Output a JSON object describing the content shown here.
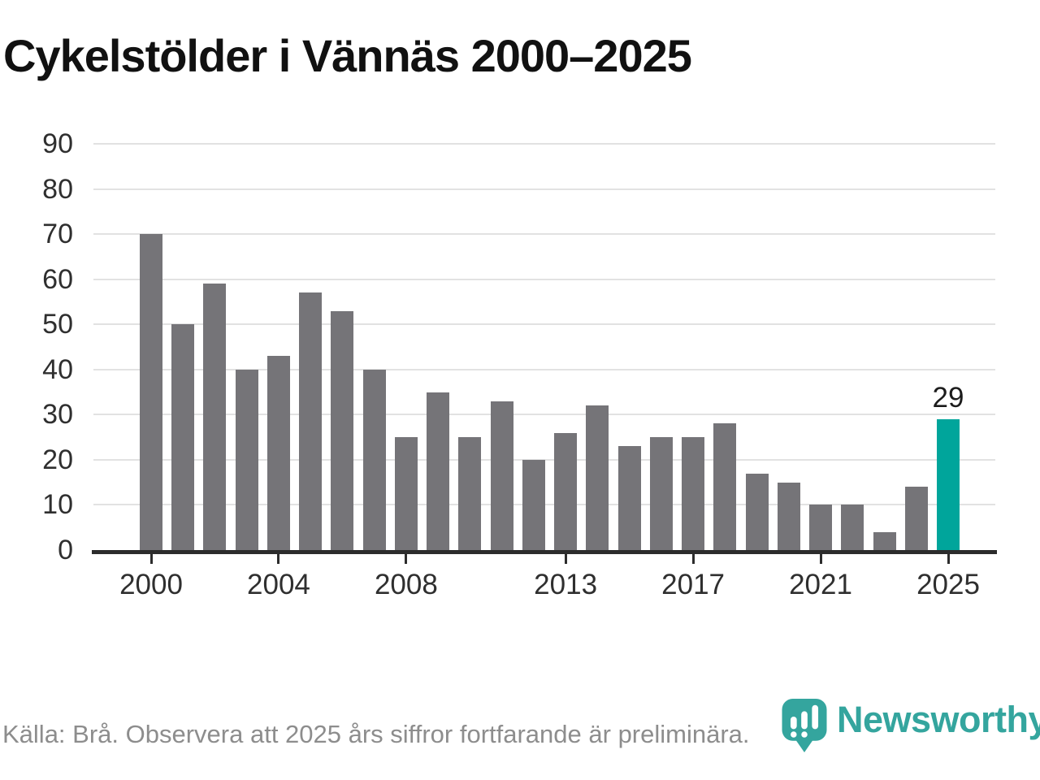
{
  "title": "Cykelstölder i Vännäs 2000–2025",
  "footer": {
    "source_note": "Källa: Brå. Observera att 2025 års siffror fortfarande är preliminära."
  },
  "branding": {
    "wordmark": "Newsworthy",
    "logo_icon": "bar-chart-bubble-icon"
  },
  "colors": {
    "bar": "#757478",
    "highlight": "#00a59b",
    "grid": "#e2e2e2",
    "axis": "#2c2c2c",
    "tick_text": "#2f2f2f",
    "title_text": "#111111",
    "footer_text": "#8d8d8d",
    "brand_teal": "#34a59e",
    "background": "#ffffff"
  },
  "chart_data": {
    "type": "bar",
    "title": "Cykelstölder i Vännäs 2000–2025",
    "categories": [
      2000,
      2001,
      2002,
      2003,
      2004,
      2005,
      2006,
      2007,
      2008,
      2009,
      2010,
      2011,
      2012,
      2013,
      2014,
      2015,
      2016,
      2017,
      2018,
      2019,
      2020,
      2021,
      2022,
      2023,
      2024,
      2025
    ],
    "values": [
      70,
      50,
      59,
      40,
      43,
      57,
      53,
      40,
      25,
      35,
      25,
      33,
      20,
      26,
      32,
      23,
      25,
      25,
      28,
      17,
      15,
      10,
      10,
      4,
      14,
      29
    ],
    "highlight_index": 25,
    "annotations": [
      {
        "index": 25,
        "text": "29"
      }
    ],
    "xticks_shown": [
      2000,
      2004,
      2008,
      2013,
      2017,
      2021,
      2025
    ],
    "xlabel": "",
    "ylabel": "",
    "ylim": [
      0,
      90
    ],
    "ytick_step": 10,
    "grid": "horizontal",
    "legend": "none"
  }
}
